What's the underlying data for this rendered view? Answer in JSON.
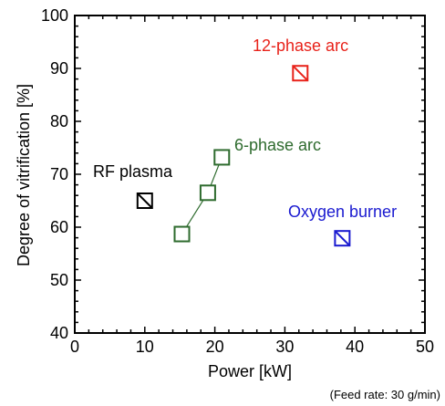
{
  "chart_data": {
    "type": "scatter",
    "xlabel": "Power [kW]",
    "ylabel": "Degree of vitrification [%]",
    "xlim": [
      0,
      50
    ],
    "ylim": [
      40,
      100
    ],
    "xticks": [
      0,
      10,
      20,
      30,
      40,
      50
    ],
    "yticks": [
      40,
      50,
      60,
      70,
      80,
      90,
      100
    ],
    "grid": false,
    "note": "(Feed rate: 30 g/min)",
    "series": [
      {
        "name": "RF plasma",
        "color": "#000000",
        "marker": "square-diagonal",
        "points": [
          {
            "x": 10,
            "y": 65
          }
        ]
      },
      {
        "name": "6-phase arc",
        "color": "#2e6b2e",
        "marker": "square",
        "connected": true,
        "points": [
          {
            "x": 15.3,
            "y": 58.7
          },
          {
            "x": 19,
            "y": 66.5
          },
          {
            "x": 21,
            "y": 73.2
          }
        ]
      },
      {
        "name": "12-phase arc",
        "color": "#e8221a",
        "marker": "square-diagonal",
        "points": [
          {
            "x": 32.2,
            "y": 89.1
          }
        ]
      },
      {
        "name": "Oxygen burner",
        "color": "#1a1ad0",
        "marker": "square-diagonal",
        "points": [
          {
            "x": 38.2,
            "y": 57.9
          }
        ]
      }
    ]
  }
}
